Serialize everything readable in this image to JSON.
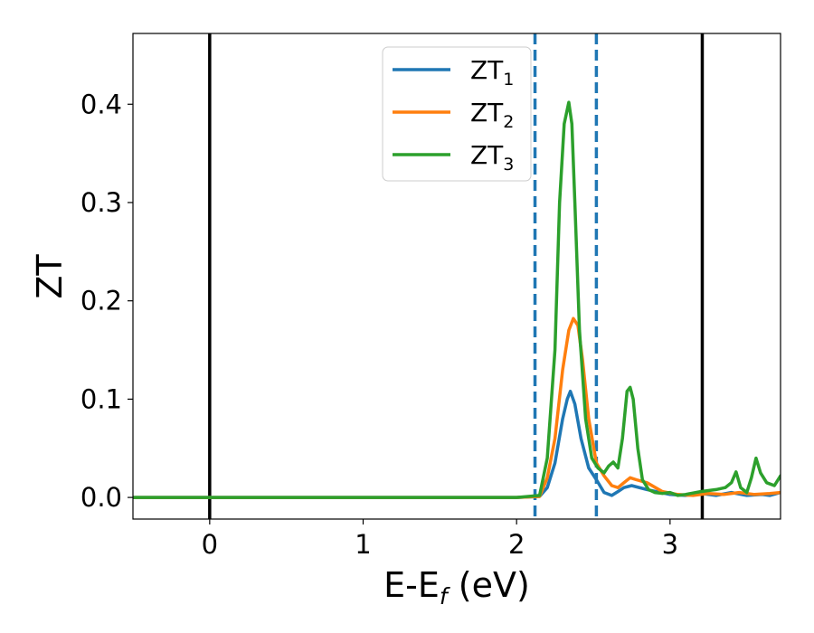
{
  "chart_data": {
    "type": "line",
    "title": "",
    "xlabel": {
      "base": "E-E",
      "sub": "f",
      "unit": " (eV)"
    },
    "ylabel": "ZT",
    "xlim": [
      -0.5,
      3.72
    ],
    "ylim": [
      -0.022,
      0.472
    ],
    "xticks": [
      0,
      1,
      2,
      3
    ],
    "yticks": [
      0.0,
      0.1,
      0.2,
      0.3,
      0.4
    ],
    "grid": false,
    "legend_position": "top-center",
    "vlines": [
      {
        "x": 0.0,
        "style": "solid",
        "color": "#000000"
      },
      {
        "x": 3.21,
        "style": "solid",
        "color": "#000000"
      },
      {
        "x": 2.12,
        "style": "dashed",
        "color": "#1f77b4"
      },
      {
        "x": 2.52,
        "style": "dashed",
        "color": "#1f77b4"
      }
    ],
    "series": [
      {
        "name": "ZT",
        "sub": "1",
        "color": "#1f77b4",
        "x": [
          -0.5,
          2.0,
          2.15,
          2.2,
          2.25,
          2.3,
          2.33,
          2.35,
          2.38,
          2.42,
          2.47,
          2.52,
          2.57,
          2.62,
          2.66,
          2.7,
          2.75,
          2.85,
          3.0,
          3.1,
          3.2,
          3.3,
          3.4,
          3.5,
          3.6,
          3.65,
          3.72
        ],
        "y": [
          0.0,
          0.0,
          0.001,
          0.01,
          0.035,
          0.08,
          0.1,
          0.108,
          0.095,
          0.06,
          0.03,
          0.018,
          0.005,
          0.002,
          0.006,
          0.01,
          0.012,
          0.008,
          0.003,
          0.002,
          0.004,
          0.002,
          0.005,
          0.002,
          0.003,
          0.002,
          0.005
        ]
      },
      {
        "name": "ZT",
        "sub": "2",
        "color": "#ff7f0e",
        "x": [
          -0.5,
          2.0,
          2.15,
          2.2,
          2.25,
          2.3,
          2.34,
          2.37,
          2.4,
          2.43,
          2.47,
          2.52,
          2.57,
          2.62,
          2.66,
          2.7,
          2.74,
          2.78,
          2.85,
          2.95,
          3.05,
          3.15,
          3.25,
          3.35,
          3.45,
          3.55,
          3.65,
          3.72
        ],
        "y": [
          0.0,
          0.0,
          0.001,
          0.02,
          0.06,
          0.13,
          0.17,
          0.182,
          0.175,
          0.14,
          0.08,
          0.035,
          0.022,
          0.012,
          0.01,
          0.015,
          0.02,
          0.018,
          0.015,
          0.006,
          0.003,
          0.002,
          0.004,
          0.003,
          0.005,
          0.003,
          0.004,
          0.005
        ]
      },
      {
        "name": "ZT",
        "sub": "3",
        "color": "#2ca02c",
        "x": [
          -0.5,
          2.0,
          2.15,
          2.2,
          2.25,
          2.28,
          2.31,
          2.34,
          2.36,
          2.38,
          2.41,
          2.45,
          2.49,
          2.53,
          2.57,
          2.6,
          2.63,
          2.66,
          2.69,
          2.72,
          2.74,
          2.76,
          2.79,
          2.82,
          2.86,
          2.9,
          2.95,
          3.0,
          3.05,
          3.1,
          3.2,
          3.3,
          3.36,
          3.4,
          3.43,
          3.46,
          3.5,
          3.53,
          3.56,
          3.59,
          3.63,
          3.68,
          3.72
        ],
        "y": [
          0.0,
          0.0,
          0.002,
          0.04,
          0.15,
          0.3,
          0.38,
          0.402,
          0.38,
          0.3,
          0.17,
          0.08,
          0.04,
          0.03,
          0.025,
          0.032,
          0.036,
          0.03,
          0.06,
          0.108,
          0.112,
          0.1,
          0.05,
          0.018,
          0.008,
          0.005,
          0.004,
          0.005,
          0.002,
          0.003,
          0.006,
          0.008,
          0.01,
          0.015,
          0.026,
          0.01,
          0.005,
          0.02,
          0.04,
          0.025,
          0.015,
          0.012,
          0.022
        ]
      }
    ]
  }
}
